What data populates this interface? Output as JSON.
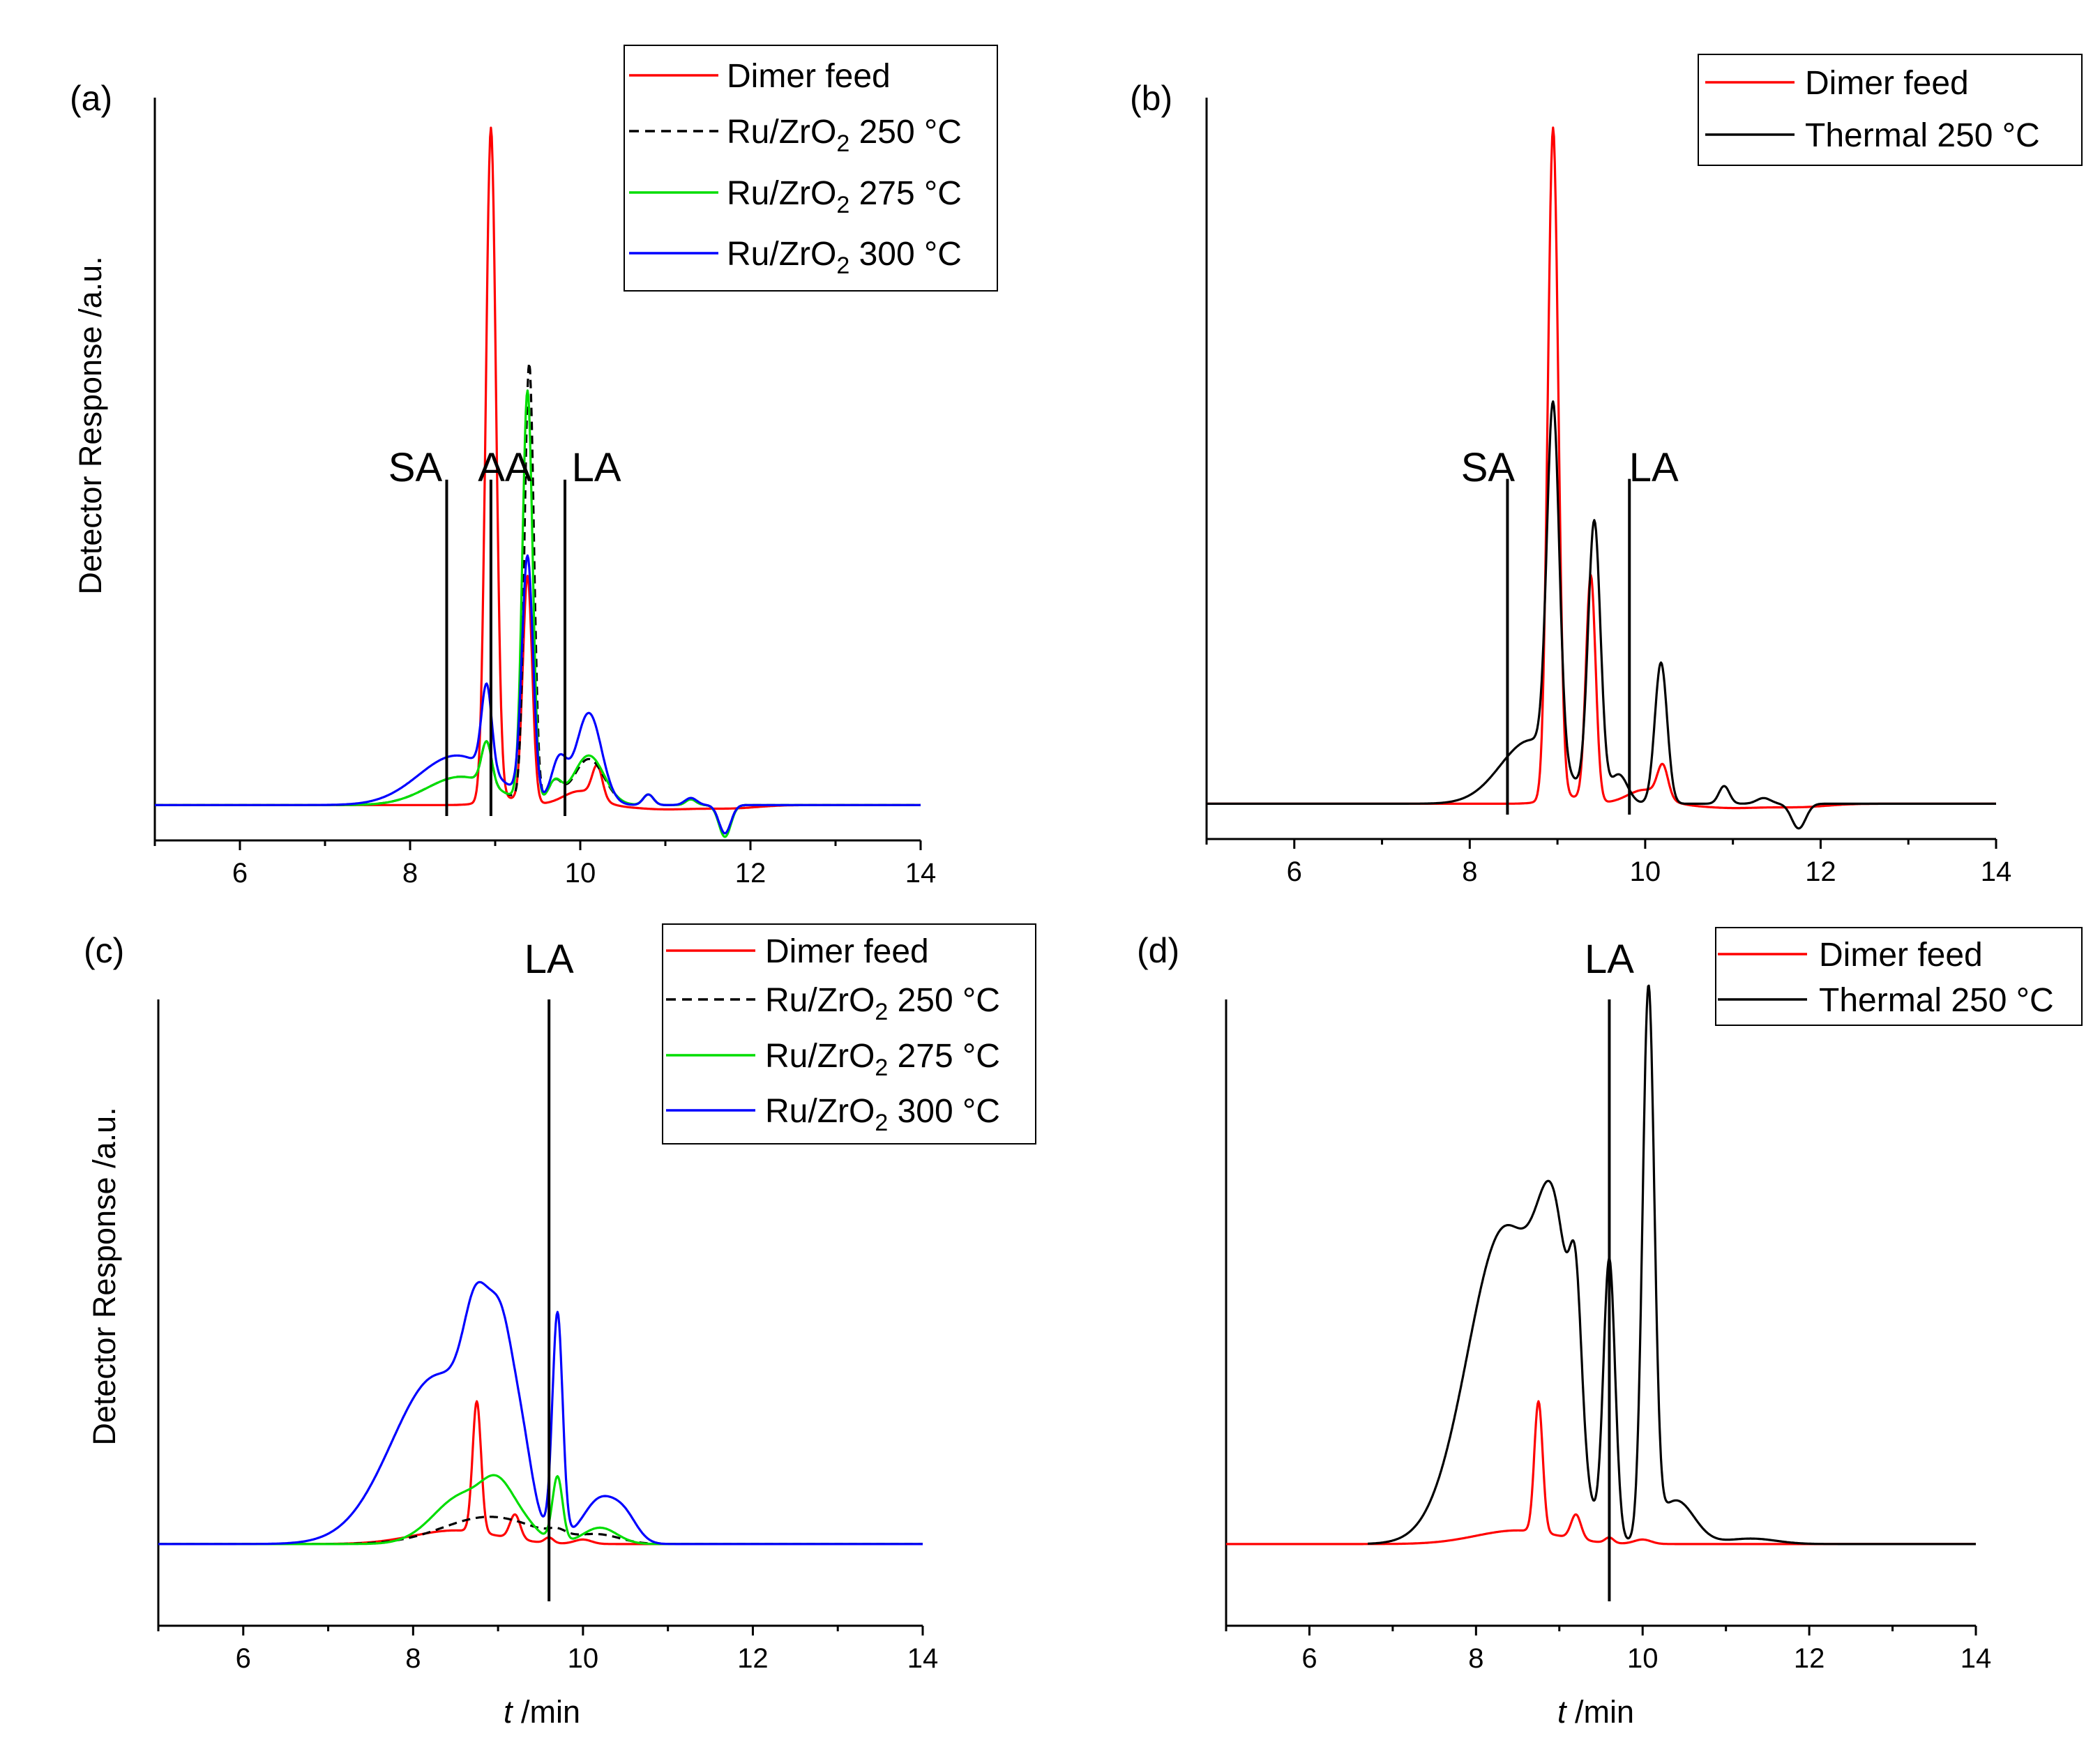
{
  "figure": {
    "ylabel": "Detector Response /a.u.",
    "xlabel_italic": "t",
    "xlabel_rest": " /min"
  },
  "chart_data": [
    {
      "panel": "(a)",
      "type": "line",
      "xlim": [
        5,
        14
      ],
      "ylim": [
        -0.05,
        1.0
      ],
      "xticks": [
        6,
        8,
        10,
        12,
        14
      ],
      "legend": "top-right",
      "legend_style": "box",
      "annotations": [
        {
          "label": "SA",
          "x": 8.43,
          "line_top": 0.46
        },
        {
          "label": "AA",
          "x": 8.95,
          "line_top": 0.46
        },
        {
          "label": "LA",
          "x": 9.82,
          "line_top": 0.46
        }
      ],
      "series": [
        {
          "name": "Dimer feed",
          "color": "#ff0000",
          "dash": false,
          "baseline": 0.0,
          "peaks": [
            [
              8.95,
              0.95,
              0.06
            ],
            [
              9.38,
              0.32,
              0.055
            ],
            [
              9.1,
              0.01,
              0.2
            ],
            [
              10.2,
              0.045,
              0.06
            ],
            [
              10.0,
              0.02,
              0.2
            ],
            [
              11.0,
              -0.006,
              0.4
            ],
            [
              11.8,
              -0.004,
              0.3
            ]
          ]
        },
        {
          "name": "Ru/ZrO2 250 °C",
          "color": "#000000",
          "dash": true,
          "baseline": 0.0,
          "peaks": [
            [
              8.6,
              0.04,
              0.4
            ],
            [
              8.9,
              0.06,
              0.06
            ],
            [
              9.4,
              0.62,
              0.055
            ],
            [
              9.7,
              0.03,
              0.08
            ],
            [
              10.1,
              0.065,
              0.18
            ],
            [
              10.8,
              0.015,
              0.06
            ],
            [
              11.3,
              0.008,
              0.06
            ],
            [
              11.7,
              -0.04,
              0.07
            ]
          ]
        },
        {
          "name": "Ru/ZrO2 275 °C",
          "color": "#00dd00",
          "dash": false,
          "baseline": 0.0,
          "peaks": [
            [
              8.6,
              0.04,
              0.4
            ],
            [
              8.9,
              0.06,
              0.06
            ],
            [
              9.38,
              0.58,
              0.06
            ],
            [
              9.7,
              0.03,
              0.08
            ],
            [
              10.1,
              0.07,
              0.18
            ],
            [
              10.8,
              0.015,
              0.06
            ],
            [
              11.3,
              0.008,
              0.06
            ],
            [
              11.7,
              -0.045,
              0.07
            ]
          ]
        },
        {
          "name": "Ru/ZrO2 300 °C",
          "color": "#0000ff",
          "dash": false,
          "baseline": 0.0,
          "peaks": [
            [
              8.55,
              0.07,
              0.45
            ],
            [
              8.9,
              0.12,
              0.06
            ],
            [
              9.38,
              0.34,
              0.065
            ],
            [
              9.75,
              0.06,
              0.09
            ],
            [
              10.1,
              0.13,
              0.15
            ],
            [
              10.8,
              0.015,
              0.06
            ],
            [
              11.3,
              0.01,
              0.07
            ],
            [
              11.7,
              -0.04,
              0.07
            ]
          ]
        }
      ]
    },
    {
      "panel": "(b)",
      "type": "line",
      "xlim": [
        5,
        14
      ],
      "ylim": [
        -0.05,
        1.0
      ],
      "xticks": [
        6,
        8,
        10,
        12,
        14
      ],
      "legend": "top-right",
      "legend_style": "box",
      "annotations": [
        {
          "label": "SA",
          "x": 8.43,
          "line_top": 0.46
        },
        {
          "label": "LA",
          "x": 9.82,
          "line_top": 0.46
        }
      ],
      "series": [
        {
          "name": "Dimer feed",
          "color": "#ff0000",
          "dash": false,
          "baseline": 0.0,
          "peaks": [
            [
              8.95,
              0.95,
              0.06
            ],
            [
              9.38,
              0.32,
              0.055
            ],
            [
              9.1,
              0.01,
              0.2
            ],
            [
              10.2,
              0.045,
              0.06
            ],
            [
              10.0,
              0.02,
              0.2
            ],
            [
              11.0,
              -0.006,
              0.4
            ],
            [
              11.8,
              -0.004,
              0.3
            ]
          ]
        },
        {
          "name": "Thermal 250 °C",
          "color": "#000000",
          "dash": false,
          "baseline": 0.0,
          "peaks": [
            [
              8.7,
              0.09,
              0.35
            ],
            [
              8.95,
              0.5,
              0.07
            ],
            [
              9.42,
              0.39,
              0.07
            ],
            [
              9.7,
              0.04,
              0.1
            ],
            [
              10.18,
              0.2,
              0.07
            ],
            [
              10.9,
              0.025,
              0.06
            ],
            [
              11.35,
              0.008,
              0.08
            ],
            [
              11.75,
              -0.035,
              0.08
            ]
          ]
        }
      ]
    },
    {
      "panel": "(c)",
      "type": "line",
      "xlim": [
        5,
        14
      ],
      "ylim": [
        -0.15,
        1.0
      ],
      "xticks": [
        6,
        8,
        10,
        12,
        14
      ],
      "legend": "top-right",
      "legend_style": "box",
      "annotations": [
        {
          "label": "LA",
          "x": 9.6,
          "line_top": 1.0
        }
      ],
      "series": [
        {
          "name": "Dimer feed",
          "color": "#ff0000",
          "dash": false,
          "baseline": 0.0,
          "peaks": [
            [
              8.5,
              0.025,
              0.5
            ],
            [
              8.75,
              0.24,
              0.05
            ],
            [
              9.2,
              0.045,
              0.06
            ],
            [
              9.6,
              0.01,
              0.05
            ],
            [
              10.0,
              0.008,
              0.1
            ]
          ]
        },
        {
          "name": "Ru/ZrO2 250 °C",
          "color": "#000000",
          "dash": true,
          "baseline": 0.0,
          "peaks": [
            [
              8.9,
              0.05,
              0.55
            ],
            [
              9.7,
              0.01,
              0.1
            ],
            [
              10.2,
              0.015,
              0.25
            ]
          ]
        },
        {
          "name": "Ru/ZrO2 275 °C",
          "color": "#00dd00",
          "dash": false,
          "baseline": 0.0,
          "peaks": [
            [
              8.6,
              0.09,
              0.35
            ],
            [
              9.0,
              0.07,
              0.18
            ],
            [
              9.3,
              0.03,
              0.18
            ],
            [
              9.7,
              0.12,
              0.06
            ],
            [
              10.2,
              0.03,
              0.2
            ]
          ]
        },
        {
          "name": "Ru/ZrO2 300 °C",
          "color": "#0000ff",
          "dash": false,
          "baseline": 0.0,
          "peaks": [
            [
              8.3,
              0.31,
              0.55
            ],
            [
              8.75,
              0.22,
              0.15
            ],
            [
              9.05,
              0.27,
              0.15
            ],
            [
              9.3,
              0.1,
              0.12
            ],
            [
              9.7,
              0.41,
              0.06
            ],
            [
              10.2,
              0.08,
              0.2
            ],
            [
              10.5,
              0.04,
              0.15
            ]
          ]
        }
      ]
    },
    {
      "panel": "(d)",
      "type": "line",
      "xlim": [
        5,
        14
      ],
      "ylim": [
        -0.15,
        1.0
      ],
      "xticks": [
        6,
        8,
        10,
        12,
        14
      ],
      "legend": "top-right",
      "legend_style": "box",
      "annotations": [
        {
          "label": "LA",
          "x": 9.6,
          "line_top": 1.0
        }
      ],
      "series": [
        {
          "name": "Dimer feed",
          "color": "#ff0000",
          "dash": false,
          "baseline": 0.0,
          "peaks": [
            [
              8.5,
              0.025,
              0.5
            ],
            [
              8.75,
              0.24,
              0.05
            ],
            [
              9.2,
              0.045,
              0.06
            ],
            [
              9.6,
              0.01,
              0.05
            ],
            [
              10.0,
              0.008,
              0.1
            ]
          ]
        },
        {
          "name": "Thermal 250 °C",
          "color": "#000000",
          "dash": false,
          "baseline": 0.0,
          "start": 6.7,
          "peaks": [
            [
              8.35,
              0.58,
              0.45
            ],
            [
              8.95,
              0.4,
              0.2
            ],
            [
              9.2,
              0.25,
              0.07
            ],
            [
              9.6,
              0.51,
              0.07
            ],
            [
              10.07,
              1.0,
              0.07
            ],
            [
              10.4,
              0.08,
              0.22
            ],
            [
              11.3,
              0.01,
              0.3
            ]
          ]
        }
      ]
    }
  ]
}
